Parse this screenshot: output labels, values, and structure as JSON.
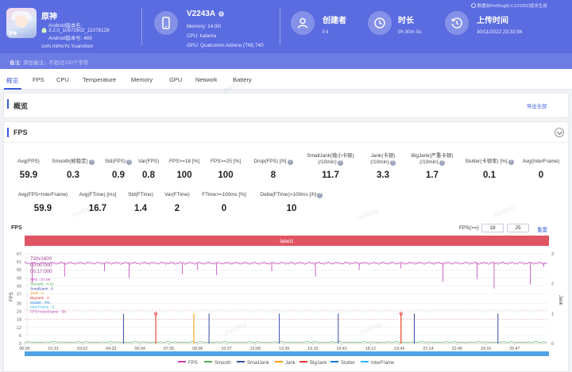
{
  "app": {
    "name": "原神",
    "android_version_label": "Android版本名:",
    "version_name": "3.2.0_10872902_11078128",
    "version_code": "Android版本号: 469",
    "package": "com.miHoYo.Yuanshen",
    "icon_caption": "原神"
  },
  "device": {
    "model": "V2243A",
    "memory": "Memory: 14.9G",
    "cpu": "CPU: kalama",
    "gpu": "GPU: Qualcomm Adreno (TM) 740"
  },
  "creator": {
    "label": "创建者",
    "value": "li li"
  },
  "duration": {
    "label": "时长",
    "value": "0h 30m 0s"
  },
  "upload": {
    "label": "上传时间",
    "value": "30/11/2022 23:33:56",
    "note": "数据由PerfDog(6.0.221052)版本生成"
  },
  "remark": {
    "label": "备注:",
    "placeholder": "添加备注，不超过200个字符"
  },
  "tabs": [
    "概览",
    "FPS",
    "CPU",
    "Temperature",
    "Memory",
    "GPU",
    "Network",
    "Battery"
  ],
  "overview": {
    "title": "概览",
    "export": "导出全部"
  },
  "fps_card": {
    "title": "FPS",
    "row1": [
      {
        "label": "Avg(FPS)",
        "value": "59.9"
      },
      {
        "label": "Smooth(帧稳定)",
        "value": "0.3",
        "help": true
      },
      {
        "label": "Std(FPS)",
        "value": "0.9",
        "help": true
      },
      {
        "label": "Var(FPS)",
        "value": "0.8"
      },
      {
        "label": "FPS>=18 [%]",
        "value": "100"
      },
      {
        "label": "FPS>=25 [%]",
        "value": "100"
      },
      {
        "label": "Drop(FPS) [/h]",
        "value": "8",
        "help": true
      },
      {
        "label": "SmallJank(微小卡顿)",
        "label2": "(/10min)",
        "value": "11.7",
        "help": true
      },
      {
        "label": "Jank(卡顿)",
        "label2": "(/10min)",
        "value": "3.3",
        "help": true
      },
      {
        "label": "BigJank(严重卡顿)",
        "label2": "(/10min)",
        "value": "1.7",
        "help": true
      },
      {
        "label": "Stutter(卡顿率) [%]",
        "value": "0.1",
        "help": true
      },
      {
        "label": "Avg(InterFrame)",
        "value": "0"
      }
    ],
    "row2": [
      {
        "label": "Avg(FPS+InterFrame)",
        "value": "59.9"
      },
      {
        "label": "Avg(FTime) [ms]",
        "value": "16.7"
      },
      {
        "label": "Std(FTime)",
        "value": "1.4"
      },
      {
        "label": "Var(FTime)",
        "value": "2"
      },
      {
        "label": "FTime>=100ms [%]",
        "value": "0"
      },
      {
        "label": "Delta(FTime)>100ms [/h]",
        "value": "10",
        "help": true
      }
    ]
  },
  "chart_controls": {
    "chart_label": "FPS",
    "threshold_label": "FPS(>=)",
    "thr1": "18",
    "thr2": "25",
    "reset": "重置"
  },
  "chart_data": {
    "type": "line",
    "title": "",
    "banner": "label1",
    "ylabel": "FPS",
    "y2label": "Jank",
    "ylim": [
      0,
      67
    ],
    "y2lim": [
      0,
      3
    ],
    "yticks": [
      "67",
      "61",
      "55",
      "49",
      "43",
      "37",
      "30",
      "24",
      "18",
      "12",
      "6",
      "0"
    ],
    "y2ticks": [
      "3",
      "2",
      "1",
      "0"
    ],
    "xticks": [
      "00:00",
      "01:31",
      "03:02",
      "04:33",
      "06:04",
      "07:35",
      "09:06",
      "10:37",
      "12:08",
      "13:39",
      "15:10",
      "16:41",
      "18:12",
      "19:43",
      "21:14",
      "22:45",
      "24:16",
      "25:47"
    ],
    "tooltip": [
      "720x1600",
      "00:00:000",
      "00:17:000",
      "FPS : 57.98",
      "Smooth : 4.81",
      "SmallJank : 0",
      "Jank : 0",
      "BigJank : 0",
      "Stutter : 0%",
      "InterFrame : 0",
      "FPS+InterFrame : 58"
    ],
    "series": [
      {
        "name": "FPS",
        "color": "#c13fb8",
        "baseline": 60,
        "dips": [
          [
            0.4,
            45
          ],
          [
            2.1,
            50
          ],
          [
            4.2,
            54
          ],
          [
            5.5,
            49
          ],
          [
            8.3,
            52
          ],
          [
            9.1,
            55
          ],
          [
            10.1,
            51
          ],
          [
            13.0,
            54
          ],
          [
            15.3,
            50
          ],
          [
            17.6,
            55
          ],
          [
            19.8,
            56
          ],
          [
            22.0,
            46
          ],
          [
            23.8,
            48
          ],
          [
            24.7,
            41
          ],
          [
            26.6,
            44
          ],
          [
            27.3,
            57
          ]
        ]
      },
      {
        "name": "Smooth",
        "color": "#4caf50"
      },
      {
        "name": "SmallJank",
        "color": "#3949ab",
        "spikes": [
          [
            5.2,
            1
          ],
          [
            9.7,
            1
          ],
          [
            13.4,
            1
          ],
          [
            16.5,
            1
          ],
          [
            20.5,
            1
          ],
          [
            24.9,
            1
          ]
        ]
      },
      {
        "name": "Jank",
        "color": "#ff9800",
        "spikes": [
          [
            6.9,
            1
          ],
          [
            8.9,
            1
          ],
          [
            19.8,
            1
          ]
        ]
      },
      {
        "name": "BigJank",
        "color": "#e53935",
        "spikes": [
          [
            6.9,
            1
          ],
          [
            19.8,
            1
          ]
        ]
      },
      {
        "name": "Stutter",
        "color": "#1976d2"
      },
      {
        "name": "InterFrame",
        "color": "#29b6f6"
      }
    ]
  },
  "colors": {
    "header": "#5b6ce0",
    "accent": "#3b5bdb",
    "banner": "#e05563"
  },
  "watermark": "PerfDog"
}
